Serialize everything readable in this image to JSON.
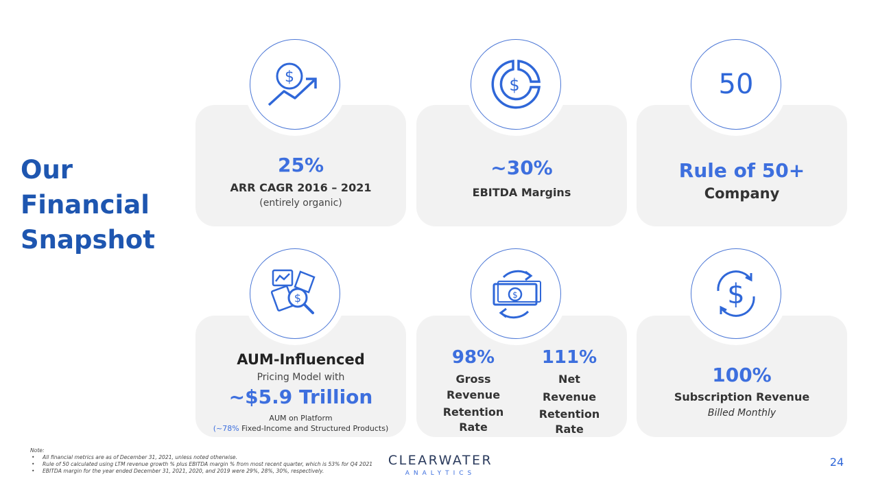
{
  "title_lines": [
    "Our",
    "Financial",
    "Snapshot"
  ],
  "cards": {
    "arr": {
      "icon": "dollar-growth-arrow-icon",
      "stat": "25%",
      "label": "ARR CAGR 2016 – 2021",
      "sublabel": "(entirely organic)"
    },
    "ebitda": {
      "icon": "dollar-pie-chart-icon",
      "stat": "~30%",
      "label": "EBITDA Margins"
    },
    "rule": {
      "badge": "50",
      "stat": "Rule of 50+",
      "label": "Company"
    },
    "aum": {
      "icon": "document-analysis-magnifier-icon",
      "heading": "AUM-Influenced",
      "line2": "Pricing Model with",
      "stat": "~$5.9 Trillion",
      "line4": "AUM on Platform",
      "line5_accent": "(~78%",
      "line5_rest": " Fixed-Income and Structured Products)"
    },
    "retention": {
      "icon": "banknote-cycle-icon",
      "gross_stat": "98%",
      "gross_lines": [
        "Gross",
        "Revenue",
        "Retention",
        "Rate"
      ],
      "net_stat": "111%",
      "net_lines": [
        "Net",
        "Revenue",
        "Retention",
        "Rate"
      ]
    },
    "subscription": {
      "icon": "dollar-refresh-icon",
      "stat": "100%",
      "label": "Subscription Revenue",
      "sublabel": "Billed Monthly"
    }
  },
  "notes": {
    "heading": "Note:",
    "items": [
      "All financial metrics are as of December 31, 2021, unless noted otherwise.",
      "Rule of 50 calculated using LTM revenue growth % plus EBITDA margin % from most recent quarter, which is 53% for Q4 2021",
      "EBITDA margin for the year ended December 31, 2021, 2020, and 2019 were 29%, 28%, 30%, respectively."
    ]
  },
  "logo": {
    "main": "CLEARWATER",
    "sub": "ANALYTICS"
  },
  "page_number": "24",
  "colors": {
    "accent": "#3d6fde",
    "title": "#1e56b0",
    "card": "#f2f2f2"
  }
}
